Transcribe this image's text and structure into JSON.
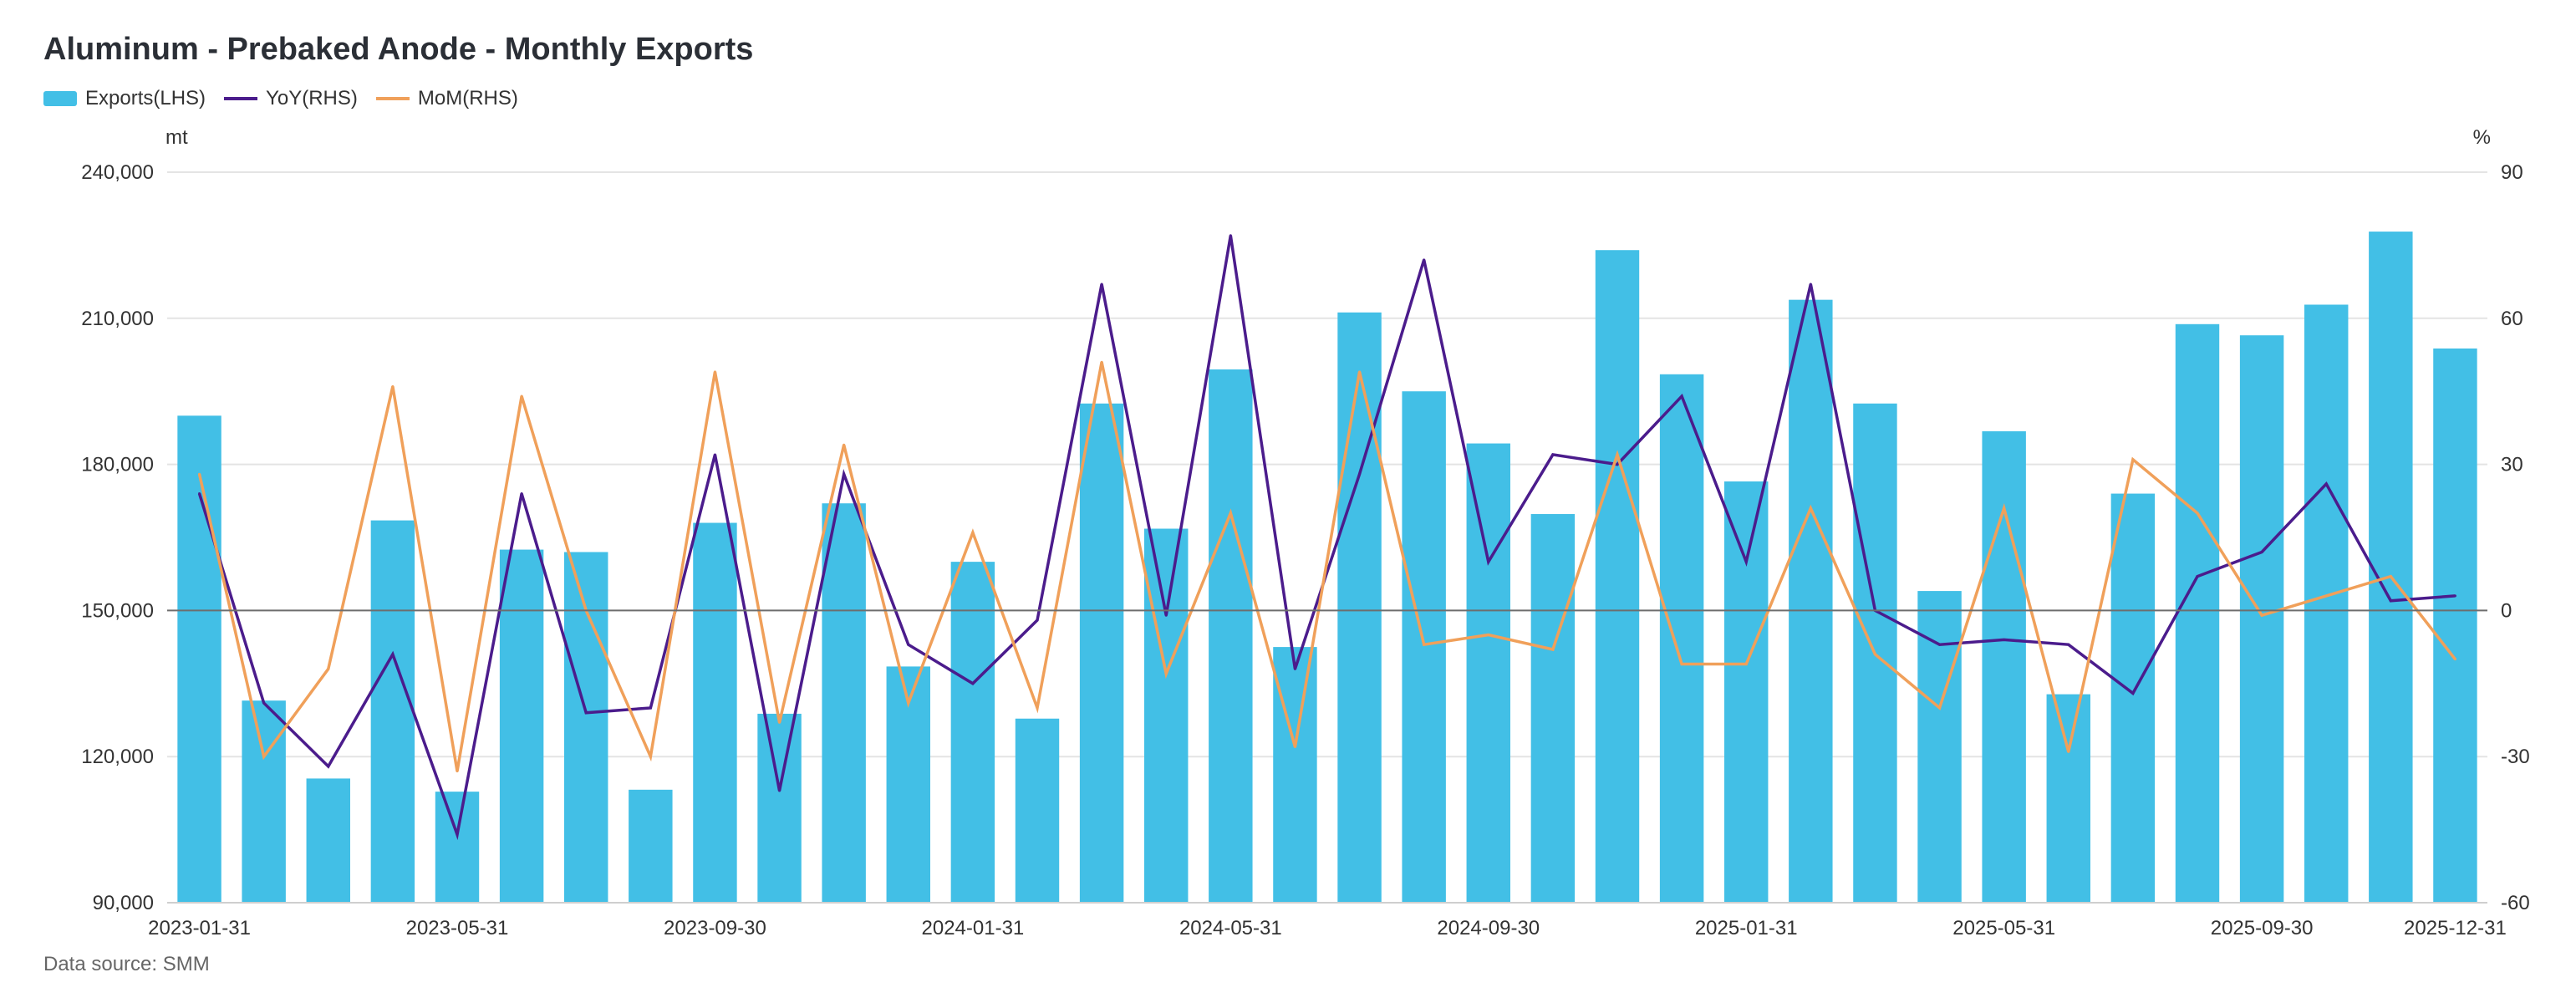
{
  "chart_data": {
    "type": "bar+line",
    "title": "Aluminum - Prebaked Anode - Monthly Exports",
    "legend": [
      {
        "name": "Exports(LHS)",
        "color": "#42bfe6",
        "kind": "bar"
      },
      {
        "name": "YoY(RHS)",
        "color": "#4b1c8c",
        "kind": "line"
      },
      {
        "name": "MoM(RHS)",
        "color": "#f0a05a",
        "kind": "line"
      }
    ],
    "left_axis": {
      "unit": "mt",
      "min": 90000,
      "max": 240000,
      "ticks": [
        "90,000",
        "120,000",
        "150,000",
        "180,000",
        "210,000",
        "240,000"
      ]
    },
    "right_axis": {
      "unit": "%",
      "min": -60,
      "max": 90,
      "ticks": [
        "-60",
        "-30",
        "0",
        "30",
        "60",
        "90"
      ]
    },
    "x_labels": [
      {
        "index": 0,
        "label": "2023-01-31"
      },
      {
        "index": 4,
        "label": "2023-05-31"
      },
      {
        "index": 8,
        "label": "2023-09-30"
      },
      {
        "index": 12,
        "label": "2024-01-31"
      },
      {
        "index": 16,
        "label": "2024-05-31"
      },
      {
        "index": 20,
        "label": "2024-09-30"
      },
      {
        "index": 24,
        "label": "2025-01-31"
      },
      {
        "index": 28,
        "label": "2025-05-31"
      },
      {
        "index": 32,
        "label": "2025-09-30"
      },
      {
        "index": 35,
        "label": "2025-12-31"
      }
    ],
    "categories": [
      "2023-01",
      "2023-02",
      "2023-03",
      "2023-04",
      "2023-05",
      "2023-06",
      "2023-07",
      "2023-08",
      "2023-09",
      "2023-10",
      "2023-11",
      "2023-12",
      "2024-01",
      "2024-02",
      "2024-03",
      "2024-04",
      "2024-05",
      "2024-06",
      "2024-07",
      "2024-08",
      "2024-09",
      "2024-10",
      "2024-11",
      "2024-12",
      "2025-01",
      "2025-02",
      "2025-03",
      "2025-04",
      "2025-05",
      "2025-06",
      "2025-07",
      "2025-08",
      "2025-09",
      "2025-10",
      "2025-11",
      "2025-12"
    ],
    "series": [
      {
        "name": "Exports(LHS)",
        "axis": "left",
        "values": [
          190000,
          131500,
          115500,
          168500,
          112800,
          162500,
          162000,
          113200,
          168000,
          128800,
          172000,
          138500,
          160000,
          127800,
          192500,
          166800,
          199500,
          142500,
          211200,
          195000,
          184300,
          169800,
          224000,
          198500,
          176500,
          213800,
          192500,
          154000,
          186800,
          132800,
          174000,
          208800,
          206500,
          212800,
          227800,
          203800
        ]
      },
      {
        "name": "YoY(RHS)",
        "axis": "right",
        "values": [
          24,
          -19,
          -32,
          -9,
          -46,
          24,
          -21,
          -20,
          32,
          -37,
          28,
          -7,
          -15,
          -2,
          67,
          -1,
          77,
          -12,
          28,
          72,
          10,
          32,
          30,
          44,
          10,
          67,
          0,
          -7,
          -6,
          -7,
          -17,
          7,
          12,
          26,
          2,
          3
        ]
      },
      {
        "name": "MoM(RHS)",
        "axis": "right",
        "values": [
          28,
          -30,
          -12,
          46,
          -33,
          44,
          0,
          -30,
          49,
          -23,
          34,
          -19,
          16,
          -20,
          51,
          -13,
          20,
          -28,
          49,
          -7,
          -5,
          -8,
          32,
          -11,
          -11,
          21,
          -9,
          -20,
          21,
          -29,
          31,
          20,
          -1,
          3,
          7,
          -10
        ]
      }
    ]
  },
  "footer": {
    "source": "Data source:  SMM"
  }
}
